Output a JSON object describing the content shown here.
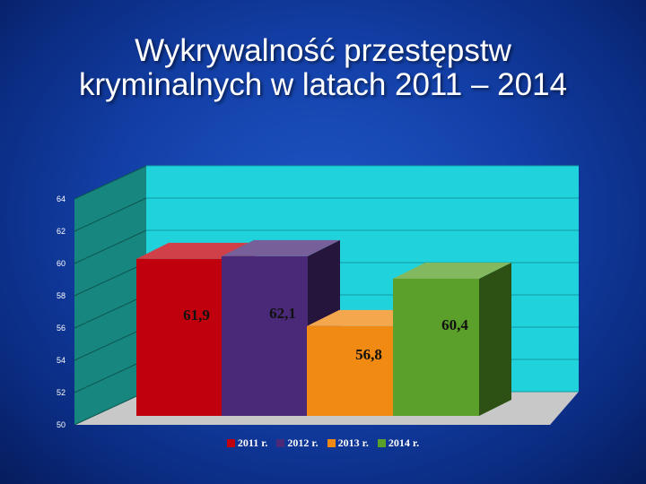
{
  "title": {
    "line1": "Wykrywalność przestępstw",
    "line2": "kryminalnych w latach 2011 – 2014"
  },
  "chart_data": {
    "type": "bar",
    "categories": [
      "2011 r.",
      "2012 r.",
      "2013 r.",
      "2014 r."
    ],
    "values": [
      61.9,
      62.1,
      56.8,
      60.4
    ],
    "value_labels": [
      "61,9",
      "62,1",
      "56,8",
      "60,4"
    ],
    "colors": [
      "#c0000c",
      "#4a2a78",
      "#f08a12",
      "#5aa02a"
    ],
    "ylim": [
      50,
      64
    ],
    "yticks": [
      50,
      52,
      54,
      56,
      58,
      60,
      62,
      64
    ],
    "ytick_labels": [
      "50",
      "52",
      "54",
      "56",
      "58",
      "60",
      "62",
      "64"
    ],
    "grid": true,
    "legend_position": "bottom",
    "style": "3d-clustered-column",
    "wall_color": "#1fd2dc",
    "floor_color": "#c8c8c8"
  }
}
